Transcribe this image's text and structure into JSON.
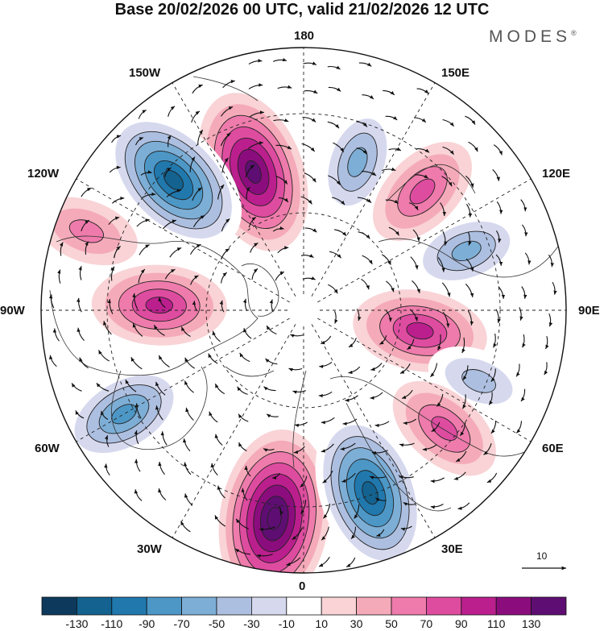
{
  "title": "Base 20/02/2026 00 UTC, valid 21/02/2026 12 UTC",
  "brand": "MODES",
  "brand_mark": "®",
  "longitude_labels": {
    "lon_180": "180",
    "lon_150e": "150E",
    "lon_120e": "120E",
    "lon_90e": "90E",
    "lon_60e": "60E",
    "lon_30e": "30E",
    "lon_0": "0",
    "lon_30w": "30W",
    "lon_60w": "60W",
    "lon_90w": "90W",
    "lon_120w": "120W",
    "lon_150w": "150W"
  },
  "reference_vector": {
    "label": "10",
    "magnitude": 10
  },
  "colorbar": {
    "ticks": [
      "-130",
      "-110",
      "-90",
      "-70",
      "-50",
      "-30",
      "-10",
      "10",
      "30",
      "50",
      "70",
      "90",
      "110",
      "130"
    ],
    "colors": [
      "#0d3a5c",
      "#13628f",
      "#2078ad",
      "#4c97c6",
      "#7daed6",
      "#adbfe0",
      "#d6d9ee",
      "#ffffff",
      "#f9d3d6",
      "#f5aab9",
      "#ee7bab",
      "#de4ca0",
      "#bb1f8d",
      "#8b0d7d",
      "#5e0e72"
    ]
  },
  "anomaly_centers": [
    {
      "lon_deg": 200,
      "colat": 0.56,
      "value": 120
    },
    {
      "lon_deg": 225,
      "colat": 0.7,
      "value": -110
    },
    {
      "lon_deg": 160,
      "colat": 0.6,
      "value": -60
    },
    {
      "lon_deg": 135,
      "colat": 0.64,
      "value": 50
    },
    {
      "lon_deg": 110,
      "colat": 0.66,
      "value": -50
    },
    {
      "lon_deg": 80,
      "colat": 0.45,
      "value": 70
    },
    {
      "lon_deg": 68,
      "colat": 0.72,
      "value": -30
    },
    {
      "lon_deg": 50,
      "colat": 0.7,
      "value": 50
    },
    {
      "lon_deg": 352,
      "colat": 0.8,
      "value": 130
    },
    {
      "lon_deg": 20,
      "colat": 0.74,
      "value": -110
    },
    {
      "lon_deg": 300,
      "colat": 0.79,
      "value": -80
    },
    {
      "lon_deg": 268,
      "colat": 0.55,
      "value": 80
    },
    {
      "lon_deg": 250,
      "colat": 0.88,
      "value": 30
    }
  ],
  "colors": {
    "frame": "#111111",
    "grid": "#222222",
    "coast": "#333333"
  }
}
